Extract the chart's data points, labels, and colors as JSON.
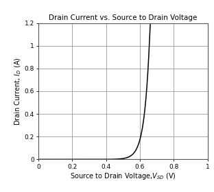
{
  "title": "Drain Current vs. Source to Drain Voltage",
  "xlabel_main": "Source to Drain Voltage,",
  "xlabel_sub": "V_{SD}",
  "xlabel_unit": " (V)",
  "ylabel_main": "Drain Current, ",
  "ylabel_sub": "I_D",
  "ylabel_unit": " (A)",
  "xlim": [
    0,
    1.0
  ],
  "ylim": [
    0,
    1.2
  ],
  "xticks": [
    0,
    0.2,
    0.4,
    0.6,
    0.8,
    1.0
  ],
  "yticks": [
    0,
    0.2,
    0.4,
    0.6,
    0.8,
    1.0,
    1.2
  ],
  "line_color": "#000000",
  "background_color": "#ffffff",
  "grid_color": "#999999",
  "title_fontsize": 7.5,
  "label_fontsize": 7.0,
  "tick_fontsize": 6.5,
  "IS": 1e-09,
  "n_vt": 0.02905,
  "x_max_plot": 0.675
}
